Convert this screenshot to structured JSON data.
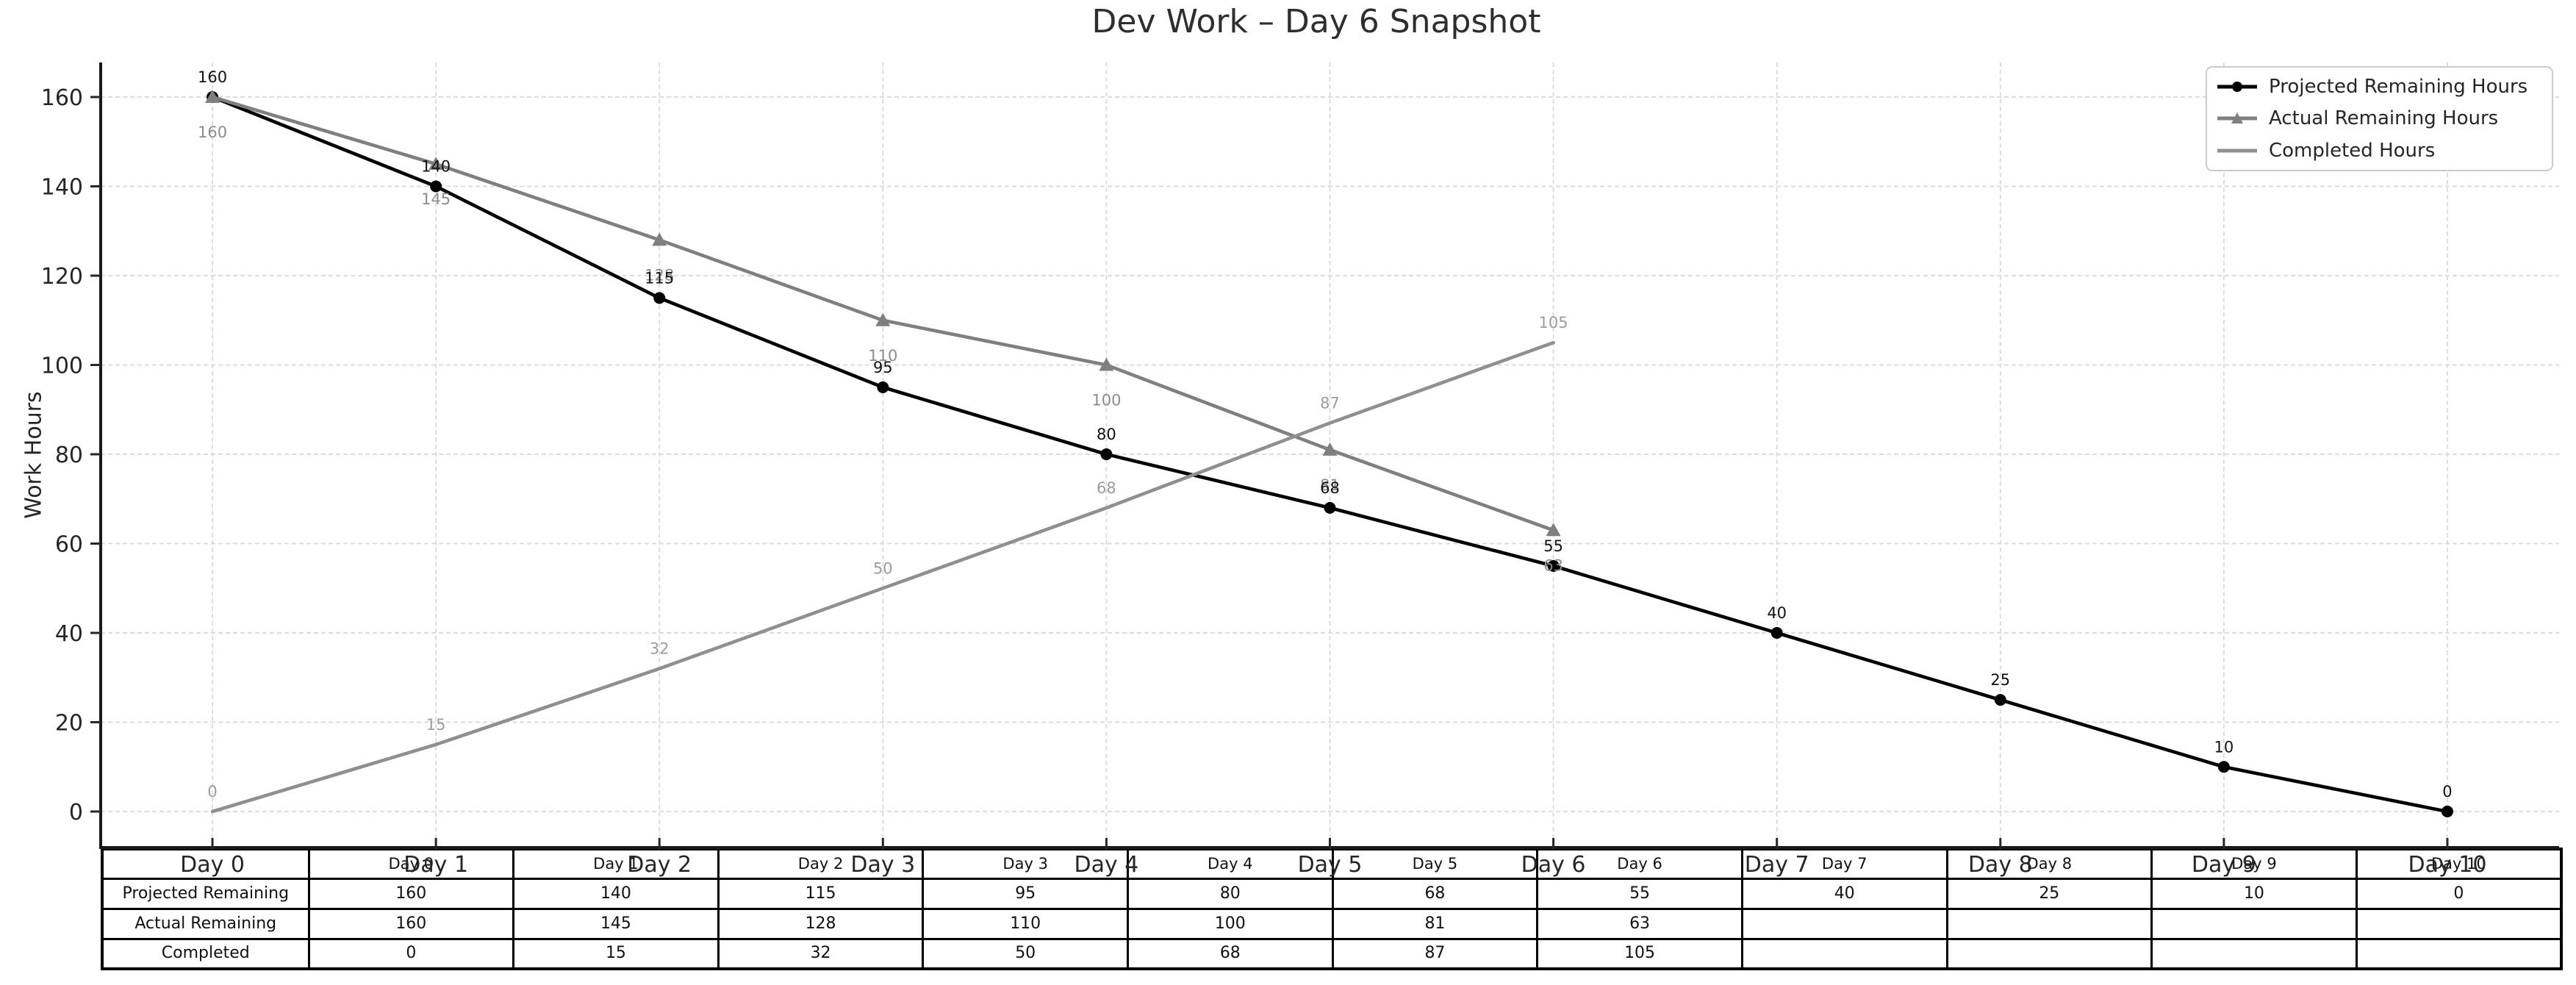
{
  "chart_data": {
    "type": "line",
    "title": "Dev Work – Day 6 Snapshot",
    "xlabel": "",
    "ylabel": "Work Hours",
    "x": [
      0,
      1,
      2,
      3,
      4,
      5,
      6,
      7,
      8,
      9,
      10
    ],
    "x_tick_labels": [
      "Day 0",
      "Day 1",
      "Day 2",
      "Day 3",
      "Day 4",
      "Day 5",
      "Day 6",
      "Day 7",
      "Day 8",
      "Day 9",
      "Day 10"
    ],
    "y_ticks": [
      0,
      20,
      40,
      60,
      80,
      100,
      120,
      140,
      160
    ],
    "xlim": [
      -0.5,
      10.5
    ],
    "ylim": [
      -8,
      168
    ],
    "grid": true,
    "legend_position": "upper-right",
    "series": [
      {
        "name": "Projected Remaining Hours",
        "x": [
          0,
          1,
          2,
          3,
          4,
          5,
          6,
          7,
          8,
          9,
          10
        ],
        "values": [
          160,
          140,
          115,
          95,
          80,
          68,
          55,
          40,
          25,
          10,
          0
        ],
        "color": "#000000",
        "marker": "circle",
        "label_color": "#111111",
        "label_side": "above"
      },
      {
        "name": "Actual Remaining Hours",
        "x": [
          0,
          1,
          2,
          3,
          4,
          5,
          6
        ],
        "values": [
          160,
          145,
          128,
          110,
          100,
          81,
          63
        ],
        "color": "#7f7f7f",
        "marker": "triangle",
        "label_color": "#8c8c8c",
        "label_side": "below"
      },
      {
        "name": "Completed Hours",
        "x": [
          0,
          1,
          2,
          3,
          4,
          5,
          6
        ],
        "values": [
          0,
          15,
          32,
          50,
          68,
          87,
          105
        ],
        "color": "#8f8f8f",
        "marker": "none",
        "label_color": "#9c9c9c",
        "label_side": "above"
      }
    ],
    "table": {
      "row_labels": [
        "Projected Remaining",
        "Actual Remaining",
        "Completed"
      ],
      "col_labels": [
        "Day 0",
        "Day 1",
        "Day 2",
        "Day 3",
        "Day 4",
        "Day 5",
        "Day 6",
        "Day 7",
        "Day 8",
        "Day 9",
        "Day 10"
      ],
      "rows": [
        [
          "160",
          "140",
          "115",
          "95",
          "80",
          "68",
          "55",
          "40",
          "25",
          "10",
          "0"
        ],
        [
          "160",
          "145",
          "128",
          "110",
          "100",
          "81",
          "63",
          "",
          "",
          "",
          ""
        ],
        [
          "0",
          "15",
          "32",
          "50",
          "68",
          "87",
          "105",
          "",
          "",
          "",
          ""
        ]
      ]
    },
    "colors": {
      "grid": "#d8d8d8",
      "spine": "#1a1a1a",
      "tick": "#262626",
      "tick_label": "#262626",
      "title": "#2e2e2e",
      "legend_border": "#cccccc",
      "table_border": "#000000",
      "table_text": "#111111"
    }
  }
}
